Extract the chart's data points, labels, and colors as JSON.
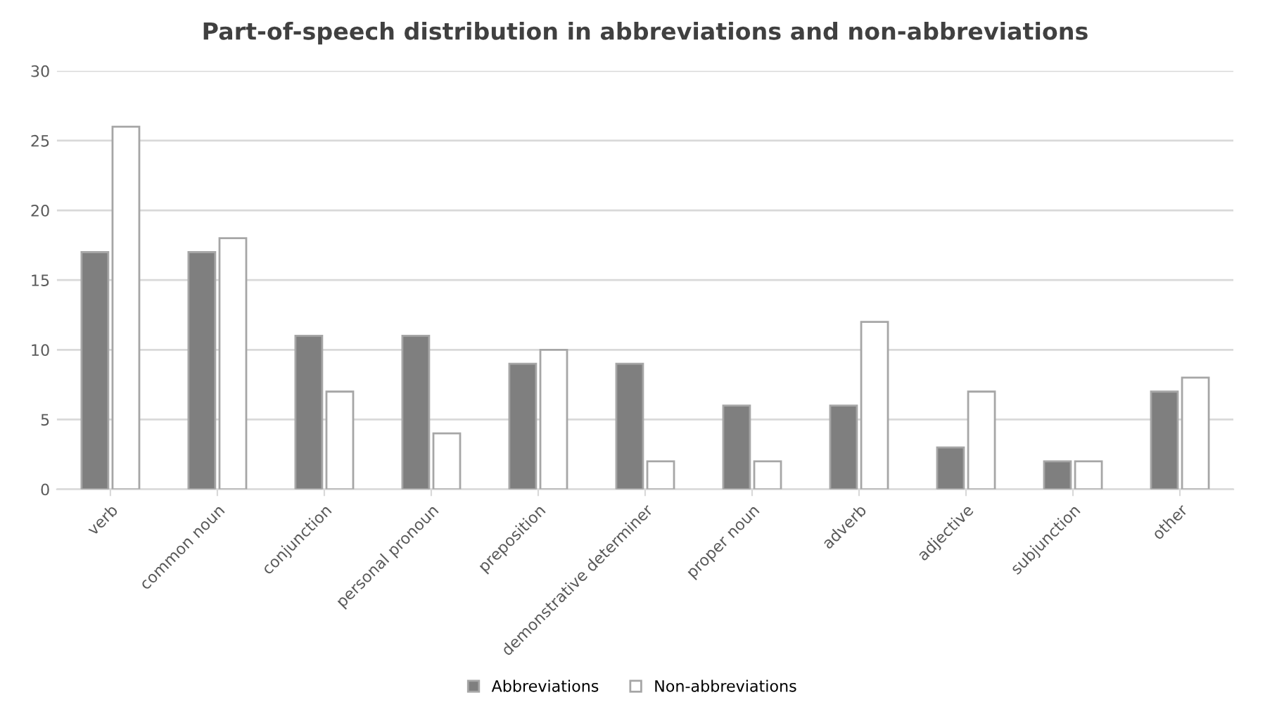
{
  "chart_data": {
    "type": "bar",
    "title": "Part-of-speech distribution in abbreviations and non-abbreviations",
    "categories": [
      "verb",
      "common noun",
      "conjunction",
      "personal pronoun",
      "preposition",
      "demonstrative determiner",
      "proper noun",
      "adverb",
      "adjective",
      "subjunction",
      "other"
    ],
    "series": [
      {
        "name": "Abbreviations",
        "color": "#7f7f7f",
        "values": [
          17,
          17,
          11,
          11,
          9,
          9,
          6,
          6,
          3,
          2,
          7
        ]
      },
      {
        "name": "Non-abbreviations",
        "color": "#ffffff",
        "values": [
          26,
          18,
          7,
          4,
          10,
          2,
          2,
          12,
          7,
          2,
          8
        ]
      }
    ],
    "ylim": [
      0,
      30
    ],
    "yticks": [
      0,
      5,
      10,
      15,
      20,
      25,
      30
    ],
    "grid": "y",
    "legend": "bottom"
  }
}
